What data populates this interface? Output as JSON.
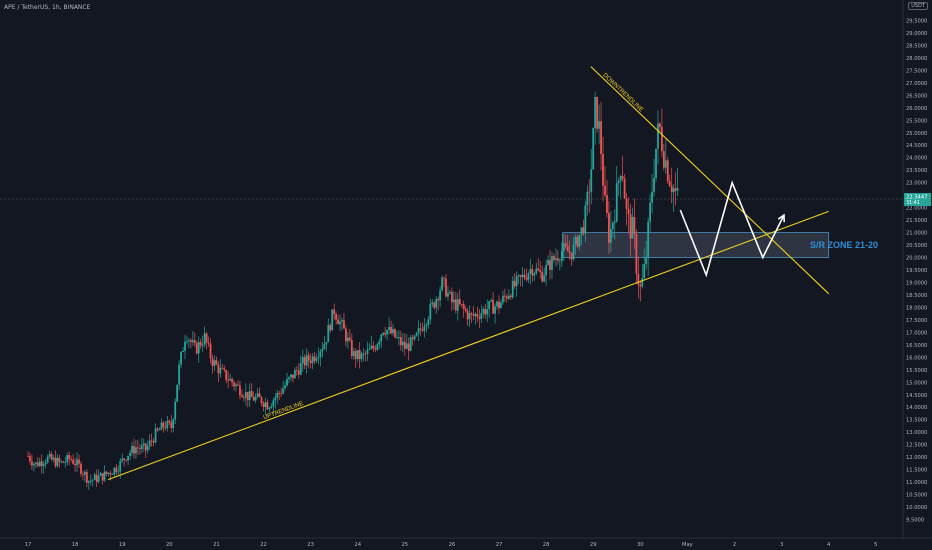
{
  "header": {
    "symbol": "APE / TetherUS, 1h, BINANCE",
    "currency": "USDT"
  },
  "colors": {
    "background": "#131722",
    "bull": "#26a69a",
    "bear": "#ef5350",
    "trendline": "#f0d020",
    "zone_border": "#4a90c2",
    "zone_label": "#2f8fd8",
    "price_tag": "#26a69a",
    "arrows": "#ffffff",
    "axis_text": "#b2b5be"
  },
  "chart_data": {
    "type": "candlestick",
    "title": "",
    "xlabel": "",
    "ylabel": "",
    "ylim": [
      9.0,
      30.0
    ],
    "grid": false,
    "x_tick_labels": [
      "17",
      "18",
      "19",
      "20",
      "21",
      "22",
      "23",
      "24",
      "25",
      "26",
      "27",
      "28",
      "29",
      "30",
      "May",
      "2",
      "3",
      "4",
      "5"
    ],
    "y_tick_labels": [
      "9.5000",
      "10.0000",
      "10.5000",
      "11.0000",
      "11.5000",
      "12.0000",
      "12.5000",
      "13.0000",
      "13.5000",
      "14.0000",
      "14.5000",
      "15.0000",
      "15.5000",
      "16.0000",
      "16.5000",
      "17.0000",
      "17.5000",
      "18.0000",
      "18.5000",
      "19.0000",
      "19.5000",
      "20.0000",
      "20.5000",
      "21.0000",
      "21.5000",
      "22.0000",
      "22.5000",
      "23.0000",
      "23.5000",
      "24.0000",
      "24.5000",
      "25.0000",
      "25.5000",
      "26.0000",
      "26.5000",
      "27.0000",
      "27.5000",
      "28.0000",
      "28.5000",
      "29.0000",
      "29.5000"
    ],
    "current_price": {
      "value": 22.3447,
      "label": "22.3447",
      "countdown": "31:41"
    },
    "close_path": [
      {
        "x": 0.0,
        "y": 12.05
      },
      {
        "x": 0.15,
        "y": 11.7
      },
      {
        "x": 0.4,
        "y": 11.95
      },
      {
        "x": 0.7,
        "y": 11.75
      },
      {
        "x": 0.9,
        "y": 11.95
      },
      {
        "x": 1.1,
        "y": 11.6
      },
      {
        "x": 1.3,
        "y": 11.05
      },
      {
        "x": 1.6,
        "y": 11.25
      },
      {
        "x": 1.9,
        "y": 11.6
      },
      {
        "x": 2.1,
        "y": 12.1
      },
      {
        "x": 2.3,
        "y": 12.4
      },
      {
        "x": 2.5,
        "y": 12.3
      },
      {
        "x": 2.7,
        "y": 12.9
      },
      {
        "x": 2.9,
        "y": 13.3
      },
      {
        "x": 3.05,
        "y": 13.2
      },
      {
        "x": 3.2,
        "y": 15.5
      },
      {
        "x": 3.35,
        "y": 17.0
      },
      {
        "x": 3.55,
        "y": 16.3
      },
      {
        "x": 3.75,
        "y": 16.8
      },
      {
        "x": 3.9,
        "y": 15.9
      },
      {
        "x": 4.1,
        "y": 15.4
      },
      {
        "x": 4.4,
        "y": 14.9
      },
      {
        "x": 4.7,
        "y": 14.4
      },
      {
        "x": 4.95,
        "y": 14.3
      },
      {
        "x": 5.1,
        "y": 14.1
      },
      {
        "x": 5.3,
        "y": 14.5
      },
      {
        "x": 5.55,
        "y": 15.1
      },
      {
        "x": 5.85,
        "y": 15.8
      },
      {
        "x": 6.05,
        "y": 16.0
      },
      {
        "x": 6.3,
        "y": 16.6
      },
      {
        "x": 6.5,
        "y": 17.9
      },
      {
        "x": 6.7,
        "y": 17.1
      },
      {
        "x": 6.9,
        "y": 16.1
      },
      {
        "x": 7.1,
        "y": 16.0
      },
      {
        "x": 7.35,
        "y": 16.4
      },
      {
        "x": 7.55,
        "y": 17.2
      },
      {
        "x": 7.75,
        "y": 16.9
      },
      {
        "x": 8.0,
        "y": 16.4
      },
      {
        "x": 8.2,
        "y": 16.6
      },
      {
        "x": 8.4,
        "y": 17.4
      },
      {
        "x": 8.6,
        "y": 18.1
      },
      {
        "x": 8.8,
        "y": 19.0
      },
      {
        "x": 9.0,
        "y": 18.2
      },
      {
        "x": 9.2,
        "y": 18.0
      },
      {
        "x": 9.4,
        "y": 17.6
      },
      {
        "x": 9.6,
        "y": 17.8
      },
      {
        "x": 9.8,
        "y": 18.0
      },
      {
        "x": 10.0,
        "y": 18.1
      },
      {
        "x": 10.2,
        "y": 18.6
      },
      {
        "x": 10.45,
        "y": 19.1
      },
      {
        "x": 10.7,
        "y": 19.6
      },
      {
        "x": 10.9,
        "y": 19.3
      },
      {
        "x": 11.1,
        "y": 19.8
      },
      {
        "x": 11.35,
        "y": 20.3
      },
      {
        "x": 11.55,
        "y": 20.2
      },
      {
        "x": 11.8,
        "y": 21.3
      },
      {
        "x": 11.95,
        "y": 23.4
      },
      {
        "x": 12.05,
        "y": 26.1
      },
      {
        "x": 12.15,
        "y": 24.8
      },
      {
        "x": 12.25,
        "y": 22.0
      },
      {
        "x": 12.35,
        "y": 20.8
      },
      {
        "x": 12.5,
        "y": 22.5
      },
      {
        "x": 12.6,
        "y": 24.0
      },
      {
        "x": 12.72,
        "y": 21.5
      },
      {
        "x": 12.85,
        "y": 21.0
      },
      {
        "x": 12.93,
        "y": 19.5
      },
      {
        "x": 13.0,
        "y": 18.7
      },
      {
        "x": 13.07,
        "y": 19.2
      },
      {
        "x": 13.15,
        "y": 20.6
      },
      {
        "x": 13.25,
        "y": 22.8
      },
      {
        "x": 13.32,
        "y": 24.2
      },
      {
        "x": 13.4,
        "y": 25.3
      },
      {
        "x": 13.5,
        "y": 24.2
      },
      {
        "x": 13.6,
        "y": 23.4
      },
      {
        "x": 13.7,
        "y": 22.8
      },
      {
        "x": 13.8,
        "y": 22.3447
      }
    ],
    "annotations": {
      "uptrendline": {
        "label": "UPTRENDLINE",
        "from": {
          "x": 1.7,
          "y": 11.1
        },
        "to": {
          "x": 17.0,
          "y": 21.85
        }
      },
      "downtrendline": {
        "label": "DOWNTRENDLINE",
        "from": {
          "x": 11.95,
          "y": 27.65
        },
        "to": {
          "x": 17.0,
          "y": 18.55
        }
      },
      "zone": {
        "label": "S/R ZONE 21-20",
        "y_low": 20.0,
        "y_high": 21.0,
        "x_from": 11.35,
        "x_to": 17.0
      },
      "projection": [
        {
          "x": 13.85,
          "y": 21.9
        },
        {
          "x": 14.4,
          "y": 19.3
        },
        {
          "x": 14.95,
          "y": 23.0
        },
        {
          "x": 15.6,
          "y": 20.0
        },
        {
          "x": 16.05,
          "y": 21.7
        }
      ]
    }
  }
}
